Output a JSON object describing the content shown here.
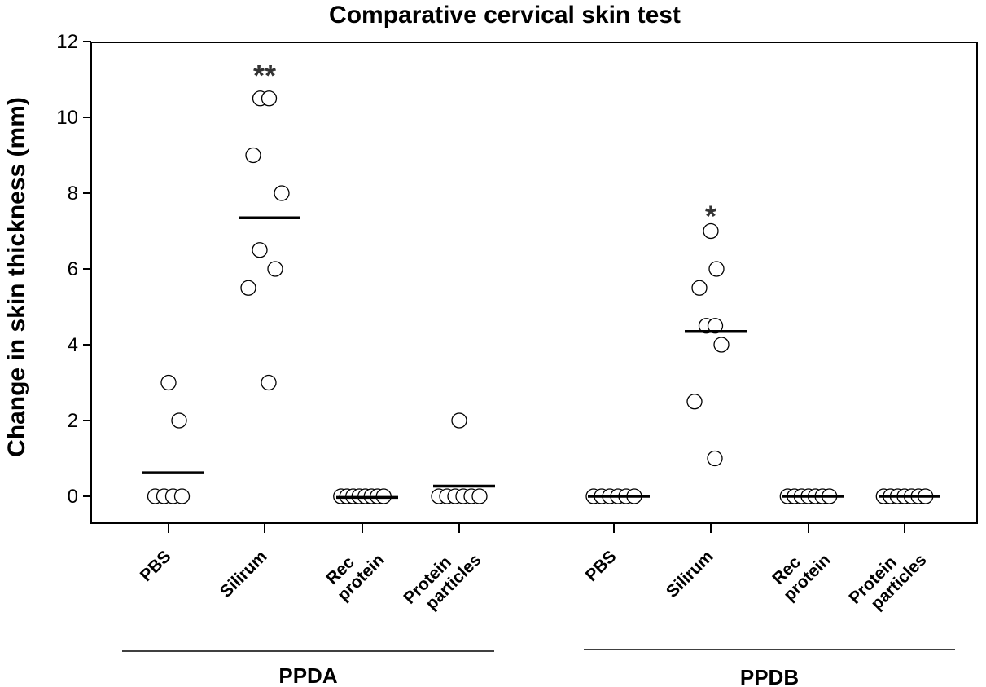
{
  "chart_data": {
    "type": "scatter",
    "title": "Comparative cervical skin test",
    "ylabel": "Change in skin thickness (mm)",
    "xlabel": "",
    "ylim": [
      -0.7,
      12
    ],
    "yticks": [
      "0",
      "2",
      "4",
      "6",
      "8",
      "10",
      "12"
    ],
    "groups": [
      {
        "name": "PPDA",
        "categories": [
          {
            "label_lines": [
              "PBS"
            ],
            "points": [
              3,
              0,
              0,
              0,
              0,
              2
            ],
            "mean": 0.62,
            "significance": ""
          },
          {
            "label_lines": [
              "Silirum"
            ],
            "points": [
              10.5,
              10.5,
              9,
              8,
              6.5,
              6,
              5.5,
              3
            ],
            "mean": 7.35,
            "significance": "**"
          },
          {
            "label_lines": [
              "Rec",
              "protein"
            ],
            "points": [
              0,
              0,
              0,
              0,
              0,
              0,
              0,
              0
            ],
            "mean": -0.03,
            "significance": ""
          },
          {
            "label_lines": [
              "Protein",
              "particles"
            ],
            "points": [
              2,
              0,
              0,
              0,
              0,
              0,
              0
            ],
            "mean": 0.27,
            "significance": ""
          }
        ]
      },
      {
        "name": "PPDB",
        "categories": [
          {
            "label_lines": [
              "PBS"
            ],
            "points": [
              0,
              0,
              0,
              0,
              0,
              0
            ],
            "mean": 0,
            "significance": ""
          },
          {
            "label_lines": [
              "Silirum"
            ],
            "points": [
              7,
              6,
              5.5,
              4.5,
              4.5,
              4,
              2.5,
              1
            ],
            "mean": 4.35,
            "significance": "*"
          },
          {
            "label_lines": [
              "Rec",
              "protein"
            ],
            "points": [
              0,
              0,
              0,
              0,
              0,
              0,
              0
            ],
            "mean": 0,
            "significance": ""
          },
          {
            "label_lines": [
              "Protein",
              "particles"
            ],
            "points": [
              0,
              0,
              0,
              0,
              0,
              0,
              0
            ],
            "mean": 0,
            "significance": ""
          }
        ]
      }
    ]
  }
}
